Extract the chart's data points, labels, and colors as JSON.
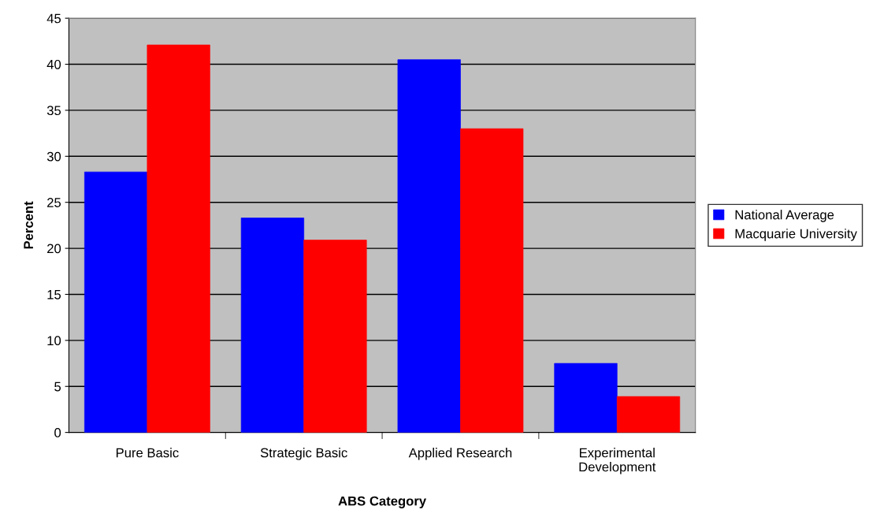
{
  "chart_data": {
    "type": "bar",
    "xlabel": "ABS Category",
    "ylabel": "Percent",
    "categories": [
      "Pure Basic",
      "Strategic Basic",
      "Applied Research",
      "Experimental\nDevelopment"
    ],
    "series": [
      {
        "name": "National Average",
        "color": "#0000ff",
        "values": [
          28.3,
          23.3,
          40.5,
          7.5
        ]
      },
      {
        "name": "Macquarie University",
        "color": "#ff0000",
        "values": [
          42.1,
          20.9,
          33.0,
          3.9
        ]
      }
    ],
    "ylim": [
      0,
      45
    ],
    "yticks": [
      0,
      5,
      10,
      15,
      20,
      25,
      30,
      35,
      40,
      45
    ],
    "grid": "y",
    "legend": "right"
  }
}
